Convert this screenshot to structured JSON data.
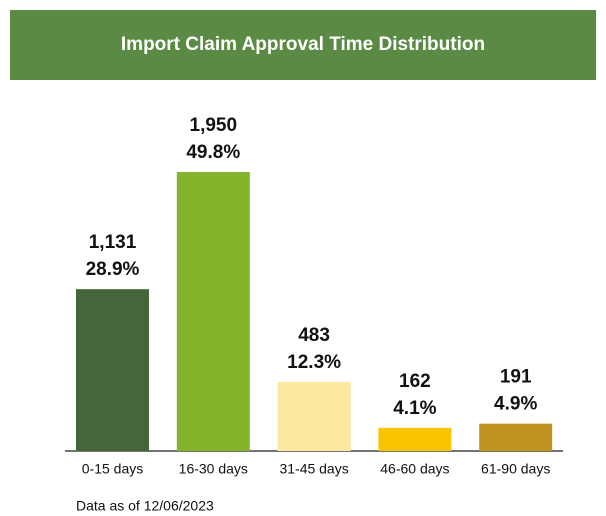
{
  "chart_data": {
    "type": "bar",
    "title": "Import Claim Approval Time Distribution",
    "categories": [
      "0-15 days",
      "16-30 days",
      "31-45 days",
      "46-60 days",
      "61-90 days"
    ],
    "values": [
      1131,
      1950,
      483,
      162,
      191
    ],
    "value_labels": [
      "1,131",
      "1,950",
      "483",
      "162",
      "191"
    ],
    "percentages": [
      28.9,
      49.8,
      12.3,
      4.1,
      4.9
    ],
    "percentage_labels": [
      "28.9%",
      "49.8%",
      "12.3%",
      "4.1%",
      "4.9%"
    ],
    "colors": [
      "#43663a",
      "#84b42c",
      "#fdeaa0",
      "#f9c400",
      "#c0951f"
    ],
    "footnote": "Data as of 12/06/2023"
  }
}
